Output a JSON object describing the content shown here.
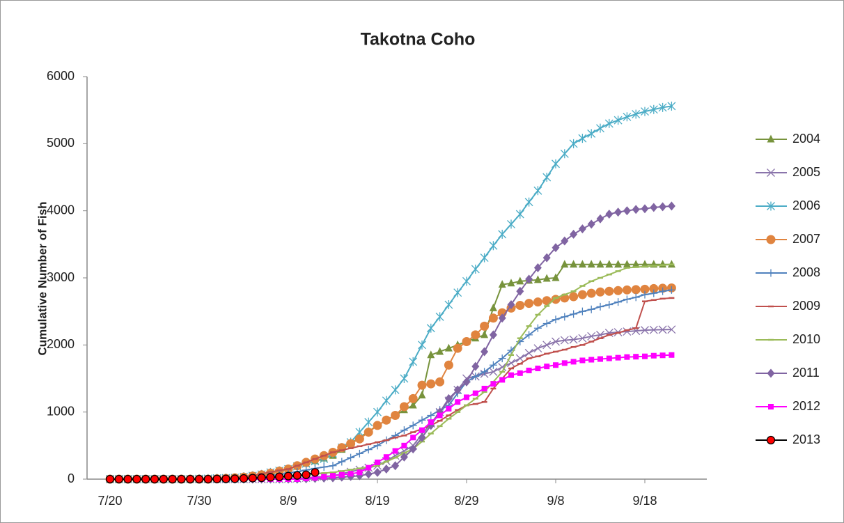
{
  "chart_data": {
    "type": "line",
    "title": "Takotna Coho",
    "y_label": "Cumulative Number of Fish",
    "categories": [
      "7/20",
      null,
      null,
      null,
      null,
      null,
      null,
      null,
      null,
      null,
      "7/30",
      null,
      null,
      null,
      null,
      null,
      null,
      null,
      null,
      null,
      "8/9",
      null,
      null,
      null,
      null,
      null,
      null,
      null,
      null,
      null,
      "8/19",
      null,
      null,
      null,
      null,
      null,
      null,
      null,
      null,
      null,
      "8/29",
      null,
      null,
      null,
      null,
      null,
      null,
      null,
      null,
      null,
      "9/8",
      null,
      null,
      null,
      null,
      null,
      null,
      null,
      null,
      null,
      "9/18",
      null,
      null,
      null
    ],
    "ylim": [
      0,
      6000
    ],
    "yticks": [
      0,
      1000,
      2000,
      3000,
      4000,
      5000,
      6000
    ],
    "grid": false,
    "legend": "right",
    "series": [
      {
        "name": "2004",
        "color": "#77933c",
        "marker": "triangle",
        "values": [
          0,
          0,
          0,
          0,
          0,
          0,
          0,
          0,
          0,
          0,
          0,
          0,
          5,
          10,
          15,
          25,
          40,
          60,
          80,
          110,
          150,
          190,
          230,
          270,
          310,
          350,
          440,
          530,
          620,
          710,
          800,
          880,
          950,
          1030,
          1100,
          1250,
          1850,
          1900,
          1950,
          2000,
          2050,
          2100,
          2150,
          2550,
          2900,
          2920,
          2950,
          2960,
          2970,
          2990,
          3000,
          3200,
          3200,
          3200,
          3200,
          3200,
          3200,
          3200,
          3200,
          3200,
          3200,
          3200,
          3200,
          3200
        ]
      },
      {
        "name": "2005",
        "color": "#8a74ab",
        "marker": "x",
        "values": [
          0,
          0,
          0,
          0,
          0,
          0,
          0,
          0,
          0,
          0,
          0,
          0,
          0,
          0,
          0,
          0,
          0,
          0,
          0,
          0,
          5,
          10,
          20,
          30,
          40,
          50,
          80,
          110,
          140,
          170,
          200,
          270,
          350,
          420,
          500,
          670,
          830,
          1000,
          1170,
          1330,
          1500,
          1530,
          1570,
          1600,
          1670,
          1730,
          1800,
          1880,
          1950,
          2000,
          2050,
          2070,
          2080,
          2100,
          2130,
          2150,
          2180,
          2190,
          2200,
          2210,
          2220,
          2225,
          2228,
          2230
        ]
      },
      {
        "name": "2006",
        "color": "#4bacc6",
        "marker": "star",
        "values": [
          0,
          0,
          0,
          0,
          0,
          0,
          0,
          0,
          0,
          0,
          5,
          8,
          12,
          16,
          20,
          35,
          50,
          70,
          100,
          125,
          150,
          190,
          230,
          265,
          300,
          380,
          470,
          550,
          700,
          850,
          1000,
          1170,
          1330,
          1500,
          1750,
          2000,
          2250,
          2420,
          2600,
          2780,
          2950,
          3130,
          3300,
          3480,
          3650,
          3800,
          3950,
          4130,
          4300,
          4500,
          4700,
          4850,
          5000,
          5080,
          5150,
          5230,
          5300,
          5350,
          5400,
          5440,
          5480,
          5510,
          5540,
          5560
        ]
      },
      {
        "name": "2007",
        "color": "#e0843f",
        "marker": "circle",
        "values": [
          0,
          0,
          0,
          0,
          0,
          0,
          0,
          0,
          0,
          0,
          0,
          0,
          5,
          10,
          20,
          30,
          45,
          65,
          90,
          120,
          150,
          200,
          250,
          300,
          350,
          400,
          470,
          530,
          600,
          700,
          800,
          880,
          950,
          1080,
          1200,
          1400,
          1420,
          1450,
          1700,
          1950,
          2050,
          2150,
          2280,
          2400,
          2480,
          2550,
          2590,
          2620,
          2640,
          2660,
          2680,
          2700,
          2720,
          2750,
          2770,
          2790,
          2800,
          2810,
          2820,
          2825,
          2830,
          2840,
          2845,
          2850
        ]
      },
      {
        "name": "2008",
        "color": "#4f81bd",
        "marker": "plus",
        "values": [
          0,
          0,
          0,
          0,
          0,
          0,
          0,
          0,
          0,
          0,
          0,
          0,
          0,
          0,
          0,
          10,
          20,
          35,
          50,
          70,
          90,
          110,
          135,
          160,
          180,
          200,
          260,
          320,
          380,
          440,
          500,
          580,
          650,
          730,
          800,
          880,
          950,
          1030,
          1100,
          1280,
          1450,
          1530,
          1600,
          1700,
          1800,
          1920,
          2050,
          2150,
          2250,
          2320,
          2380,
          2420,
          2460,
          2500,
          2530,
          2570,
          2600,
          2640,
          2680,
          2710,
          2750,
          2770,
          2800,
          2820
        ]
      },
      {
        "name": "2009",
        "color": "#c0504d",
        "marker": "dash",
        "values": [
          0,
          0,
          0,
          0,
          0,
          0,
          0,
          0,
          0,
          0,
          0,
          0,
          5,
          10,
          20,
          35,
          55,
          80,
          105,
          130,
          150,
          200,
          250,
          300,
          350,
          400,
          430,
          460,
          490,
          520,
          550,
          580,
          620,
          650,
          700,
          750,
          800,
          870,
          950,
          1030,
          1100,
          1120,
          1150,
          1350,
          1500,
          1650,
          1720,
          1800,
          1830,
          1870,
          1900,
          1930,
          1970,
          2000,
          2050,
          2100,
          2150,
          2180,
          2220,
          2250,
          2650,
          2670,
          2690,
          2700
        ]
      },
      {
        "name": "2010",
        "color": "#9bbb59",
        "marker": "dash",
        "values": [
          0,
          0,
          0,
          0,
          0,
          0,
          0,
          0,
          0,
          0,
          0,
          0,
          0,
          0,
          0,
          0,
          0,
          0,
          10,
          20,
          30,
          45,
          60,
          75,
          90,
          100,
          120,
          140,
          160,
          180,
          200,
          260,
          320,
          390,
          450,
          560,
          680,
          790,
          900,
          1000,
          1100,
          1200,
          1300,
          1450,
          1600,
          1850,
          2100,
          2280,
          2450,
          2580,
          2700,
          2750,
          2800,
          2880,
          2950,
          3000,
          3050,
          3100,
          3150,
          3160,
          3170,
          3180,
          3190,
          3200
        ]
      },
      {
        "name": "2011",
        "color": "#8064a2",
        "marker": "diamond",
        "values": [
          0,
          0,
          0,
          0,
          0,
          0,
          0,
          0,
          0,
          0,
          0,
          0,
          0,
          0,
          0,
          0,
          0,
          0,
          0,
          0,
          0,
          0,
          5,
          10,
          15,
          20,
          30,
          40,
          50,
          75,
          100,
          150,
          200,
          330,
          450,
          620,
          800,
          1000,
          1200,
          1330,
          1450,
          1680,
          1900,
          2150,
          2400,
          2600,
          2800,
          2980,
          3150,
          3300,
          3450,
          3550,
          3650,
          3730,
          3800,
          3880,
          3950,
          3980,
          4000,
          4020,
          4030,
          4050,
          4060,
          4070
        ]
      },
      {
        "name": "2012",
        "color": "#ff00ff",
        "marker": "square",
        "values": [
          0,
          0,
          0,
          0,
          0,
          0,
          0,
          0,
          0,
          0,
          0,
          0,
          0,
          0,
          0,
          0,
          0,
          0,
          0,
          0,
          0,
          0,
          10,
          20,
          35,
          50,
          65,
          80,
          100,
          170,
          250,
          330,
          420,
          500,
          620,
          730,
          850,
          950,
          1050,
          1150,
          1220,
          1280,
          1350,
          1420,
          1480,
          1550,
          1580,
          1620,
          1650,
          1680,
          1700,
          1730,
          1750,
          1770,
          1780,
          1790,
          1800,
          1810,
          1820,
          1825,
          1830,
          1840,
          1845,
          1850
        ]
      },
      {
        "name": "2013",
        "color": "#000000",
        "marker_fill": "#ff0000",
        "marker": "circle",
        "values": [
          0,
          0,
          0,
          0,
          0,
          0,
          0,
          0,
          0,
          0,
          0,
          0,
          2,
          4,
          6,
          10,
          15,
          20,
          28,
          35,
          45,
          55,
          65,
          100,
          null,
          null,
          null,
          null,
          null,
          null,
          null,
          null,
          null,
          null,
          null,
          null,
          null,
          null,
          null,
          null,
          null,
          null,
          null,
          null,
          null,
          null,
          null,
          null,
          null,
          null,
          null,
          null,
          null,
          null,
          null,
          null,
          null,
          null,
          null,
          null,
          null,
          null,
          null,
          null
        ]
      }
    ]
  }
}
